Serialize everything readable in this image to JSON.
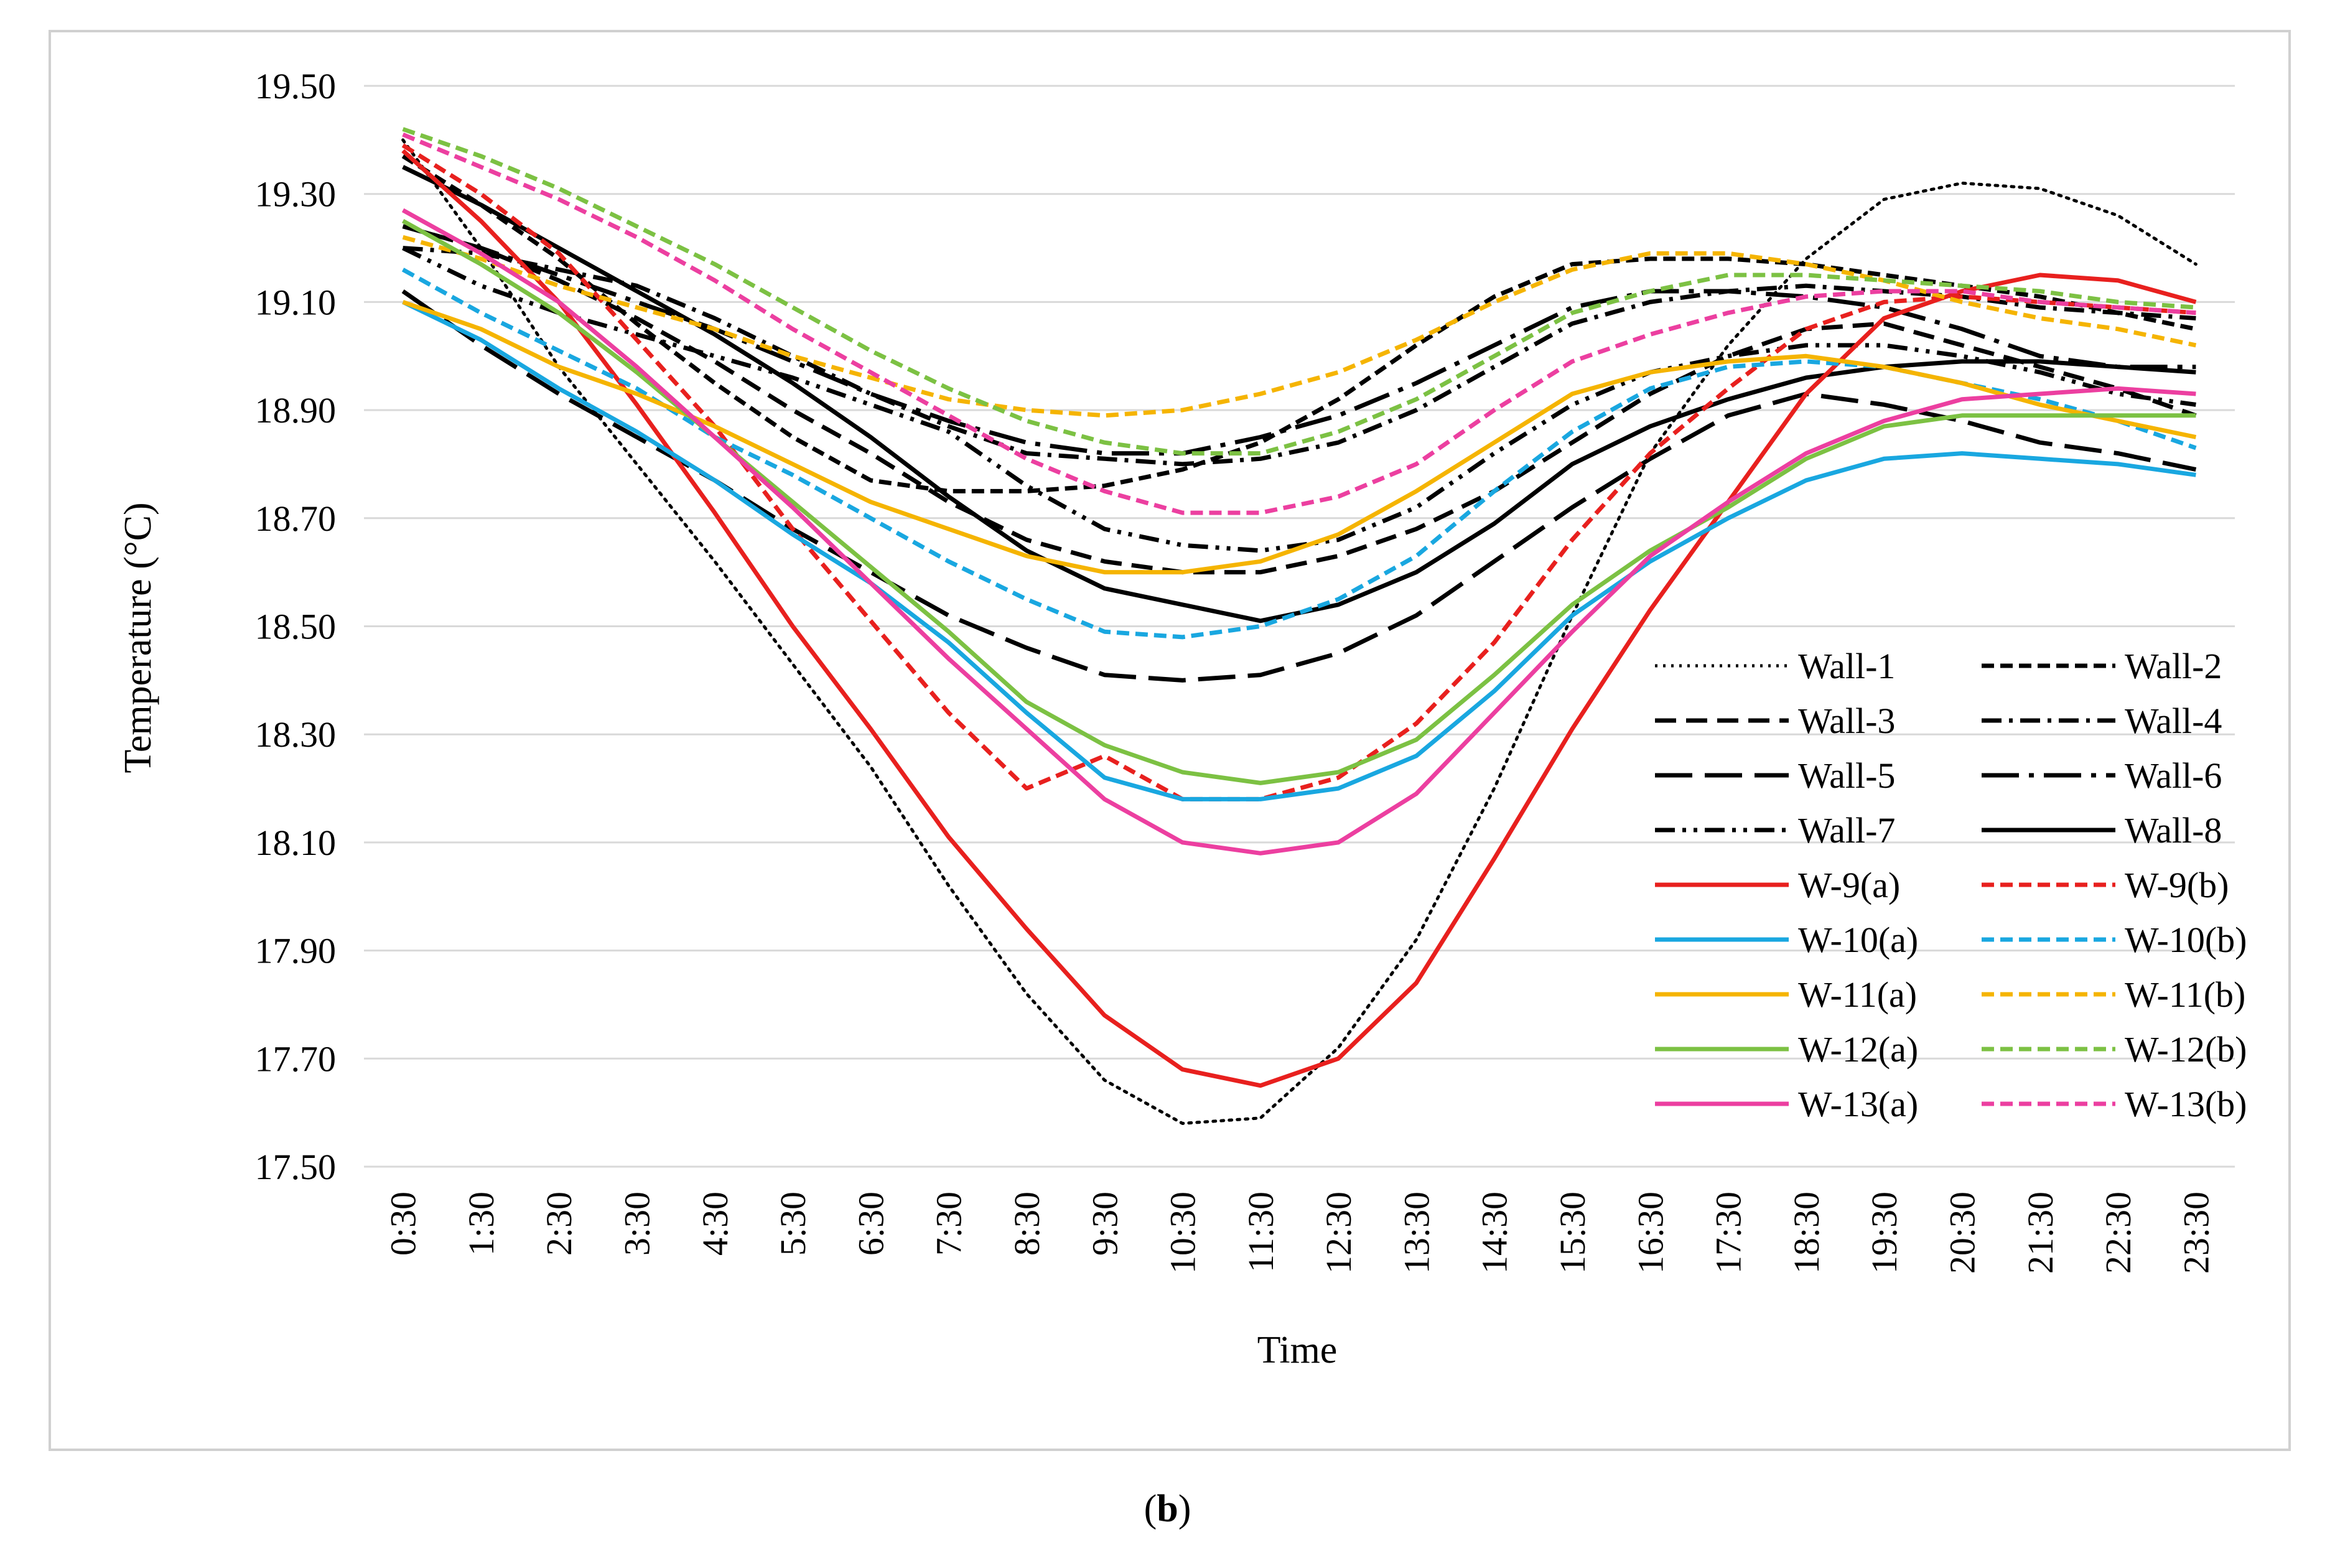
{
  "chart_data": {
    "type": "line",
    "title": "",
    "xlabel": "Time",
    "ylabel": "Temperature (°C)",
    "ylim": [
      17.5,
      19.5
    ],
    "yticks": [
      "17.50",
      "17.70",
      "17.90",
      "18.10",
      "18.30",
      "18.50",
      "18.70",
      "18.90",
      "19.10",
      "19.30",
      "19.50"
    ],
    "grid": "horizontal",
    "legend_position": "bottom-right",
    "categories": [
      "0:30",
      "1:30",
      "2:30",
      "3:30",
      "4:30",
      "5:30",
      "6:30",
      "7:30",
      "8:30",
      "9:30",
      "10:30",
      "11:30",
      "12:30",
      "13:30",
      "14:30",
      "15:30",
      "16:30",
      "17:30",
      "18:30",
      "19:30",
      "20:30",
      "21:30",
      "22:30",
      "23:30"
    ],
    "series": [
      {
        "name": "Wall-1",
        "color": "#000000",
        "dash": "dot",
        "values": [
          19.4,
          19.2,
          18.98,
          18.8,
          18.62,
          18.43,
          18.24,
          18.02,
          17.82,
          17.66,
          17.58,
          17.59,
          17.72,
          17.92,
          18.2,
          18.52,
          18.82,
          19.02,
          19.18,
          19.29,
          19.32,
          19.31,
          19.26,
          19.17
        ]
      },
      {
        "name": "Wall-2",
        "color": "#000000",
        "dash": "short",
        "values": [
          19.37,
          19.28,
          19.18,
          19.06,
          18.95,
          18.85,
          18.77,
          18.75,
          18.75,
          18.76,
          18.79,
          18.84,
          18.92,
          19.02,
          19.11,
          19.17,
          19.18,
          19.18,
          19.17,
          19.15,
          19.13,
          19.11,
          19.08,
          19.05
        ]
      },
      {
        "name": "Wall-3",
        "color": "#000000",
        "dash": "medium",
        "values": [
          19.24,
          19.2,
          19.14,
          19.07,
          18.99,
          18.9,
          18.82,
          18.73,
          18.66,
          18.62,
          18.6,
          18.6,
          18.63,
          18.68,
          18.75,
          18.84,
          18.93,
          19.0,
          19.05,
          19.06,
          19.02,
          18.98,
          18.94,
          18.89
        ]
      },
      {
        "name": "Wall-4",
        "color": "#000000",
        "dash": "dashdot",
        "values": [
          19.2,
          19.19,
          19.16,
          19.13,
          19.07,
          19.0,
          18.93,
          18.87,
          18.82,
          18.81,
          18.8,
          18.81,
          18.84,
          18.9,
          18.98,
          19.06,
          19.1,
          19.12,
          19.13,
          19.12,
          19.11,
          19.09,
          19.08,
          19.07
        ]
      },
      {
        "name": "Wall-5",
        "color": "#000000",
        "dash": "long",
        "values": [
          19.12,
          19.02,
          18.93,
          18.85,
          18.77,
          18.68,
          18.6,
          18.52,
          18.46,
          18.41,
          18.4,
          18.41,
          18.45,
          18.52,
          18.62,
          18.72,
          18.81,
          18.89,
          18.93,
          18.91,
          18.88,
          18.84,
          18.82,
          18.79
        ]
      },
      {
        "name": "Wall-6",
        "color": "#000000",
        "dash": "longdash",
        "values": [
          19.24,
          19.2,
          19.15,
          19.1,
          19.05,
          18.99,
          18.93,
          18.88,
          18.84,
          18.82,
          18.82,
          18.85,
          18.89,
          18.95,
          19.02,
          19.09,
          19.12,
          19.12,
          19.11,
          19.09,
          19.05,
          19.0,
          18.98,
          18.98
        ]
      },
      {
        "name": "Wall-7",
        "color": "#000000",
        "dash": "dashdotdot",
        "values": [
          19.2,
          19.13,
          19.08,
          19.04,
          19.0,
          18.96,
          18.91,
          18.86,
          18.76,
          18.68,
          18.65,
          18.64,
          18.66,
          18.72,
          18.82,
          18.91,
          18.97,
          19.0,
          19.02,
          19.02,
          19.0,
          18.97,
          18.93,
          18.91
        ]
      },
      {
        "name": "Wall-8",
        "color": "#000000",
        "dash": "solid",
        "values": [
          19.35,
          19.28,
          19.2,
          19.12,
          19.04,
          18.95,
          18.85,
          18.74,
          18.64,
          18.57,
          18.54,
          18.51,
          18.54,
          18.6,
          18.69,
          18.8,
          18.87,
          18.92,
          18.96,
          18.98,
          18.99,
          18.99,
          18.98,
          18.97
        ]
      },
      {
        "name": "W-9(a)",
        "color": "#e8201e",
        "dash": "solid",
        "values": [
          19.38,
          19.25,
          19.1,
          18.91,
          18.71,
          18.5,
          18.31,
          18.11,
          17.94,
          17.78,
          17.68,
          17.65,
          17.7,
          17.84,
          18.07,
          18.31,
          18.53,
          18.73,
          18.93,
          19.07,
          19.12,
          19.15,
          19.14,
          19.1
        ]
      },
      {
        "name": "W-9(b)",
        "color": "#e8201e",
        "dash": "short",
        "values": [
          19.39,
          19.3,
          19.19,
          19.03,
          18.87,
          18.68,
          18.51,
          18.34,
          18.2,
          18.26,
          18.18,
          18.18,
          18.22,
          18.32,
          18.47,
          18.66,
          18.82,
          18.94,
          19.05,
          19.1,
          19.11,
          19.1,
          19.09,
          19.08
        ]
      },
      {
        "name": "W-10(a)",
        "color": "#19a7e0",
        "dash": "solid",
        "values": [
          19.1,
          19.03,
          18.94,
          18.86,
          18.77,
          18.67,
          18.58,
          18.47,
          18.34,
          18.22,
          18.18,
          18.18,
          18.2,
          18.26,
          18.38,
          18.52,
          18.62,
          18.7,
          18.77,
          18.81,
          18.82,
          18.81,
          18.8,
          18.78
        ]
      },
      {
        "name": "W-10(b)",
        "color": "#19a7e0",
        "dash": "short",
        "values": [
          19.16,
          19.08,
          19.01,
          18.94,
          18.85,
          18.78,
          18.7,
          18.62,
          18.55,
          18.49,
          18.48,
          18.5,
          18.55,
          18.63,
          18.75,
          18.86,
          18.94,
          18.98,
          18.99,
          18.98,
          18.95,
          18.92,
          18.88,
          18.83
        ]
      },
      {
        "name": "W-11(a)",
        "color": "#f5b400",
        "dash": "solid",
        "values": [
          19.1,
          19.05,
          18.98,
          18.93,
          18.87,
          18.8,
          18.73,
          18.68,
          18.63,
          18.6,
          18.6,
          18.62,
          18.67,
          18.75,
          18.84,
          18.93,
          18.97,
          18.99,
          19.0,
          18.98,
          18.95,
          18.91,
          18.88,
          18.85
        ]
      },
      {
        "name": "W-11(b)",
        "color": "#f5b400",
        "dash": "short",
        "values": [
          19.22,
          19.18,
          19.13,
          19.09,
          19.05,
          19.0,
          18.96,
          18.92,
          18.9,
          18.89,
          18.9,
          18.93,
          18.97,
          19.03,
          19.1,
          19.16,
          19.19,
          19.19,
          19.17,
          19.14,
          19.1,
          19.07,
          19.05,
          19.02
        ]
      },
      {
        "name": "W-12(a)",
        "color": "#7cc143",
        "dash": "solid",
        "values": [
          19.25,
          19.17,
          19.08,
          18.97,
          18.85,
          18.73,
          18.61,
          18.49,
          18.36,
          18.28,
          18.23,
          18.21,
          18.23,
          18.29,
          18.41,
          18.54,
          18.64,
          18.72,
          18.81,
          18.87,
          18.89,
          18.89,
          18.89,
          18.89
        ]
      },
      {
        "name": "W-12(b)",
        "color": "#7cc143",
        "dash": "short",
        "values": [
          19.42,
          19.37,
          19.31,
          19.24,
          19.17,
          19.09,
          19.01,
          18.94,
          18.88,
          18.84,
          18.82,
          18.82,
          18.86,
          18.92,
          19.0,
          19.08,
          19.12,
          19.15,
          19.15,
          19.14,
          19.13,
          19.12,
          19.1,
          19.09
        ]
      },
      {
        "name": "W-13(a)",
        "color": "#ec3fa0",
        "dash": "solid",
        "values": [
          19.27,
          19.19,
          19.1,
          18.98,
          18.85,
          18.72,
          18.58,
          18.44,
          18.31,
          18.18,
          18.1,
          18.08,
          18.1,
          18.19,
          18.34,
          18.49,
          18.63,
          18.73,
          18.82,
          18.88,
          18.92,
          18.93,
          18.94,
          18.93
        ]
      },
      {
        "name": "W-13(b)",
        "color": "#ec3fa0",
        "dash": "short",
        "values": [
          19.41,
          19.35,
          19.29,
          19.22,
          19.14,
          19.05,
          18.97,
          18.89,
          18.81,
          18.75,
          18.71,
          18.71,
          18.74,
          18.8,
          18.9,
          18.99,
          19.04,
          19.08,
          19.11,
          19.12,
          19.12,
          19.1,
          19.09,
          19.08
        ]
      }
    ]
  },
  "caption": {
    "open": "(",
    "letter": "b",
    "close": ")"
  }
}
